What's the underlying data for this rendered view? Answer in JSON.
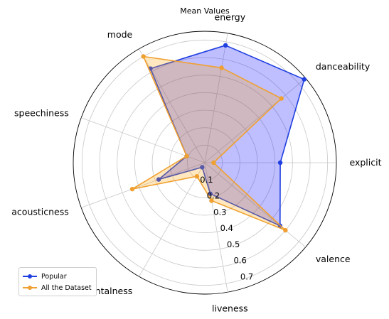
{
  "chart_data": {
    "type": "radar",
    "title": "Mean Values",
    "axes": [
      "explicit",
      "danceability",
      "energy",
      "mode",
      "speechiness",
      "acousticness",
      "instrumentalness",
      "liveness",
      "valence"
    ],
    "series": [
      {
        "name": "Popular",
        "color": "#1f3fe0",
        "fill": "#0000ff",
        "fill_opacity": 0.25,
        "values": [
          0.43,
          0.74,
          0.68,
          0.62,
          0.11,
          0.28,
          0.03,
          0.18,
          0.56
        ]
      },
      {
        "name": "All the Dataset",
        "color": "#f0a030",
        "fill": "#ffa500",
        "fill_opacity": 0.25,
        "values": [
          0.05,
          0.57,
          0.55,
          0.7,
          0.11,
          0.44,
          0.09,
          0.22,
          0.6
        ]
      }
    ],
    "r_ticks": [
      0.1,
      0.2,
      0.3,
      0.4,
      0.5,
      0.6,
      0.7
    ],
    "r_tick_labels": [
      "0.1",
      "0.2",
      "0.3",
      "0.4",
      "0.5",
      "0.6",
      "0.7"
    ],
    "rlim": [
      0,
      0.75
    ],
    "grid": true,
    "legend_position": "lower-left"
  }
}
